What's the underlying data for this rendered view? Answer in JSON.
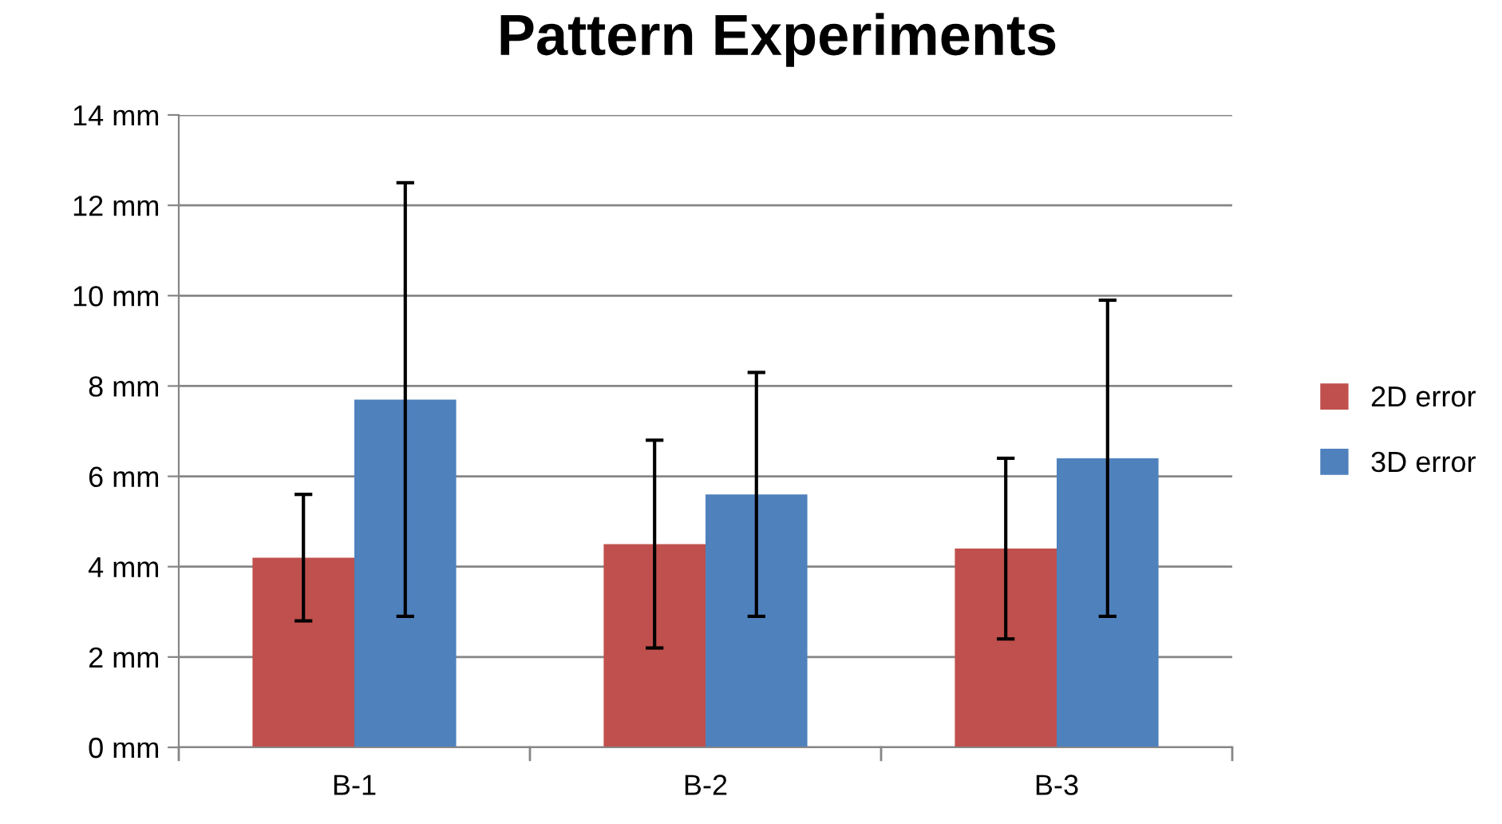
{
  "chart_data": {
    "type": "bar",
    "title": "Pattern Experiments",
    "categories": [
      "B-1",
      "B-2",
      "B-3"
    ],
    "series": [
      {
        "name": "2D error",
        "color": "#c0504d",
        "values": [
          4.2,
          4.5,
          4.4
        ],
        "errors": [
          1.4,
          2.3,
          2.0
        ]
      },
      {
        "name": "3D error",
        "color": "#4f81bd",
        "values": [
          7.7,
          5.6,
          6.4
        ],
        "errors": [
          4.8,
          2.7,
          3.5
        ]
      }
    ],
    "ylim": [
      0,
      14
    ],
    "yticks": [
      {
        "value": 0,
        "label": "0 mm"
      },
      {
        "value": 2,
        "label": "2 mm"
      },
      {
        "value": 4,
        "label": "4 mm"
      },
      {
        "value": 6,
        "label": "6 mm"
      },
      {
        "value": 8,
        "label": "8 mm"
      },
      {
        "value": 10,
        "label": "10 mm"
      },
      {
        "value": 12,
        "label": "12 mm"
      },
      {
        "value": 14,
        "label": "14 mm"
      }
    ],
    "grid": "y",
    "legend": "right"
  }
}
